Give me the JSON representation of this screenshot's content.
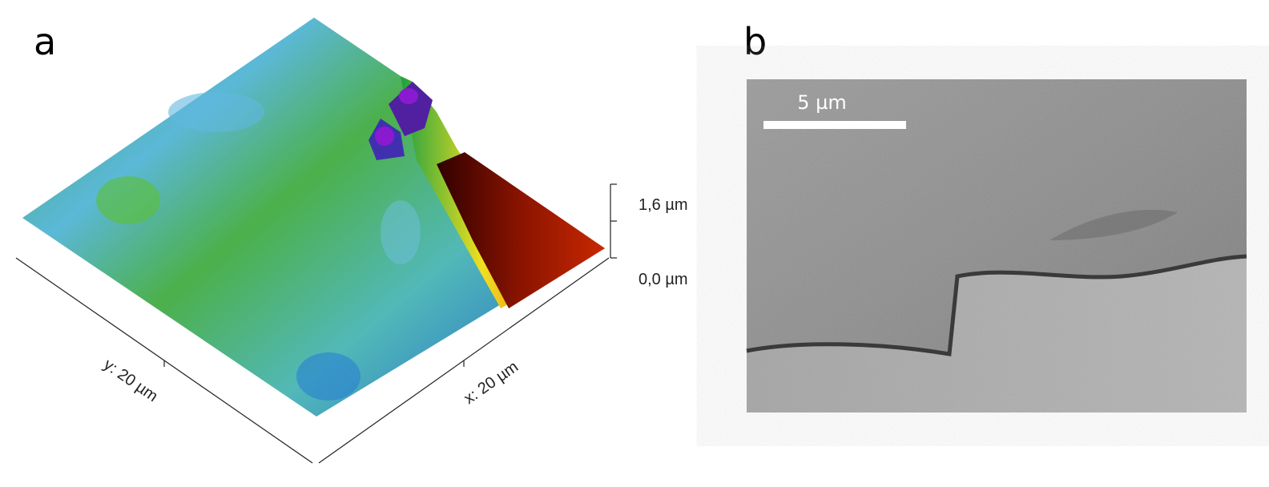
{
  "panel_a": {
    "label": "a",
    "z_axis": {
      "top_label": "1,6 µm",
      "bottom_label": "0,0 µm"
    },
    "y_axis_label": "y: 20 µm",
    "x_axis_label": "x: 20 µm"
  },
  "panel_b": {
    "label": "b",
    "scale_bar_label": "5 µm"
  }
}
